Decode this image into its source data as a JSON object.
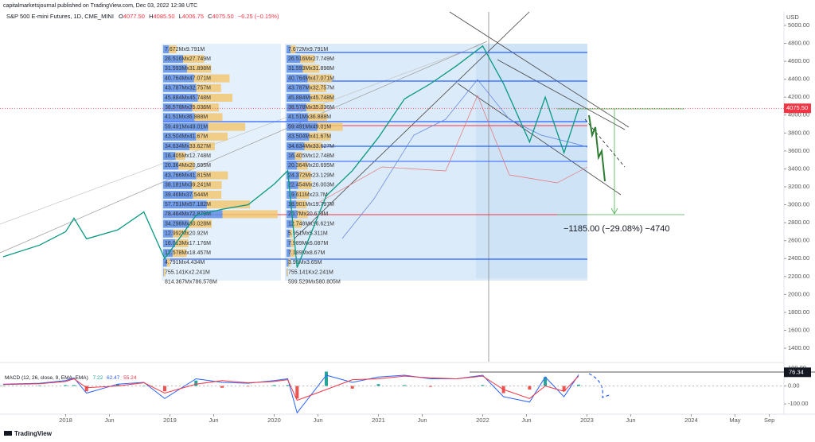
{
  "header": {
    "attribution": "capitalmarketsjournal published on TradingView.com, Dec 03, 2022 12:38 UTC",
    "symbol": "S&P 500 E-mini Futures, 1D, CME_MINI",
    "ohlc": [
      {
        "key": "O",
        "value": "4077.50"
      },
      {
        "key": "H",
        "value": "4085.50"
      },
      {
        "key": "L",
        "value": "4006.75"
      },
      {
        "key": "C",
        "value": "4075.50"
      }
    ],
    "change": "−6.25 (−0.15%)",
    "currency": "USD"
  },
  "footer": {
    "brand": "TradingView"
  },
  "volume_profiles": [
    {
      "rows": [
        {
          "label": "7.672Mx9.791M",
          "up": 7.672,
          "down": 9.791
        },
        {
          "label": "26.516Mx27.749M",
          "up": 26.516,
          "down": 27.749
        },
        {
          "label": "31.593Mx31.898M",
          "up": 31.593,
          "down": 31.898
        },
        {
          "label": "40.764Mx47.071M",
          "up": 40.764,
          "down": 47.071
        },
        {
          "label": "43.787Mx32.757M",
          "up": 43.787,
          "down": 32.757
        },
        {
          "label": "45.884Mx45.748M",
          "up": 45.884,
          "down": 45.748
        },
        {
          "label": "38.578Mx35.036M",
          "up": 38.578,
          "down": 35.036
        },
        {
          "label": "41.51Mx36.888M",
          "up": 41.51,
          "down": 36.888
        },
        {
          "label": "59.491Mx49.01M",
          "up": 59.491,
          "down": 49.01
        },
        {
          "label": "43.504Mx41.67M",
          "up": 43.504,
          "down": 41.67
        },
        {
          "label": "34.634Mx33.627M",
          "up": 34.634,
          "down": 33.627
        },
        {
          "label": "16.405Mx12.748M",
          "up": 16.405,
          "down": 12.748
        },
        {
          "label": "20.364Mx20.695M",
          "up": 20.364,
          "down": 20.695
        },
        {
          "label": "43.766Mx41.815M",
          "up": 43.766,
          "down": 41.815
        },
        {
          "label": "38.181Mx39.241M",
          "up": 38.181,
          "down": 39.241
        },
        {
          "label": "39.46Mx37.544M",
          "up": 39.46,
          "down": 37.544
        },
        {
          "label": "57.751Mx57.182M",
          "up": 57.751,
          "down": 57.182
        },
        {
          "label": "78.464Mx72.879M",
          "up": 78.464,
          "down": 72.879
        },
        {
          "label": "34.296Mx30.028M",
          "up": 34.296,
          "down": 30.028
        },
        {
          "label": "12.992Mx20.92M",
          "up": 12.992,
          "down": 20.92
        },
        {
          "label": "16.013Mx17.176M",
          "up": 16.013,
          "down": 17.176
        },
        {
          "label": "12.578Mx18.457M",
          "up": 12.578,
          "down": 18.457
        },
        {
          "label": "4.791Mx4.434M",
          "up": 4.791,
          "down": 4.434
        },
        {
          "label": "755.141Kx2.241M",
          "up": 0.755141,
          "down": 2.241
        }
      ],
      "total": "814.367Mx786.578M"
    },
    {
      "rows": [
        {
          "label": "7.672Mx9.791M",
          "up": 7.672,
          "down": 9.791
        },
        {
          "label": "26.516Mx27.749M",
          "up": 26.516,
          "down": 27.749
        },
        {
          "label": "31.593Mx31.898M",
          "up": 31.593,
          "down": 31.898
        },
        {
          "label": "40.764Mx47.071M",
          "up": 40.764,
          "down": 47.071
        },
        {
          "label": "43.787Mx32.757M",
          "up": 43.787,
          "down": 32.757
        },
        {
          "label": "45.884Mx45.748M",
          "up": 45.884,
          "down": 45.748
        },
        {
          "label": "38.578Mx35.036M",
          "up": 38.578,
          "down": 35.036
        },
        {
          "label": "41.51Mx36.888M",
          "up": 41.51,
          "down": 36.888
        },
        {
          "label": "59.491Mx49.01M",
          "up": 59.491,
          "down": 49.01
        },
        {
          "label": "43.504Mx41.67M",
          "up": 43.504,
          "down": 41.67
        },
        {
          "label": "34.634Mx33.627M",
          "up": 34.634,
          "down": 33.627
        },
        {
          "label": "16.405Mx12.748M",
          "up": 16.405,
          "down": 12.748
        },
        {
          "label": "20.364Mx20.695M",
          "up": 20.364,
          "down": 20.695
        },
        {
          "label": "24.372Mx23.129M",
          "up": 24.372,
          "down": 23.129
        },
        {
          "label": "22.454Mx26.003M",
          "up": 22.454,
          "down": 26.003
        },
        {
          "label": "19.611Mx23.7M",
          "up": 19.611,
          "down": 23.7
        },
        {
          "label": "18.901Mx19.797M",
          "up": 18.901,
          "down": 19.797
        },
        {
          "label": "20.7Mx20.673M",
          "up": 20.7,
          "down": 20.673
        },
        {
          "label": "12.748Mx16.621M",
          "up": 12.748,
          "down": 16.621
        },
        {
          "label": "5.951Mx5.311M",
          "up": 5.951,
          "down": 5.311
        },
        {
          "label": "7.989Mx6.087M",
          "up": 7.989,
          "down": 6.087
        },
        {
          "label": "7.189Mx8.67M",
          "up": 7.189,
          "down": 8.67
        },
        {
          "label": "3.93Mx3.65M",
          "up": 3.93,
          "down": 3.65
        },
        {
          "label": "755.141Kx2.241M",
          "up": 0.755141,
          "down": 2.241
        }
      ],
      "total": "599.529Mx580.805M"
    }
  ],
  "chart_data": [
    {
      "type": "line",
      "x": [
        2017.4,
        2017.75,
        2018.0,
        2018.08,
        2018.2,
        2018.5,
        2018.75,
        2018.95,
        2019.25,
        2019.5,
        2019.75,
        2020.0,
        2020.13,
        2020.22,
        2020.5,
        2020.75,
        2021.0,
        2021.25,
        2021.5,
        2021.75,
        2022.0,
        2022.2,
        2022.45,
        2022.6,
        2022.78,
        2022.92
      ],
      "series": [
        {
          "color": "#089981",
          "values": [
            2420,
            2550,
            2700,
            2850,
            2620,
            2720,
            2920,
            2400,
            2880,
            2950,
            3000,
            3230,
            3380,
            2300,
            3100,
            3380,
            3750,
            4180,
            4350,
            4550,
            4770,
            4350,
            3700,
            4200,
            3580,
            4075.5
          ]
        }
      ],
      "xlim": [
        2017.37,
        2024.89
      ],
      "xticks": [
        2018,
        {
          "value": 2018.42,
          "label": "Jun"
        },
        2019,
        {
          "value": 2019.42,
          "label": "Jun"
        },
        2020,
        {
          "value": 2020.42,
          "label": "Jun"
        },
        2021,
        {
          "value": 2021.42,
          "label": "Jun"
        },
        2022,
        {
          "value": 2022.42,
          "label": "Jun"
        },
        2023,
        {
          "value": 2023.42,
          "label": "Jun"
        },
        2024,
        {
          "value": 2024.42,
          "label": "May"
        },
        {
          "value": 2024.75,
          "label": "Sep"
        }
      ],
      "ylim": [
        1250,
        5150
      ],
      "yticks": [
        {
          "value": 1400,
          "label": "1400.00"
        },
        {
          "value": 1600,
          "label": "1600.00"
        },
        {
          "value": 1800,
          "label": "1800.00"
        },
        {
          "value": 2000,
          "label": "2000.00"
        },
        {
          "value": 2200,
          "label": "2200.00"
        },
        {
          "value": 2400,
          "label": "2400.00"
        },
        {
          "value": 2600,
          "label": "2600.00"
        },
        {
          "value": 2800,
          "label": "2800.00"
        },
        {
          "value": 3000,
          "label": "3000.00"
        },
        {
          "value": 3200,
          "label": "3200.00"
        },
        {
          "value": 3400,
          "label": "3400.00"
        },
        {
          "value": 3600,
          "label": "3600.00"
        },
        {
          "value": 3800,
          "label": "3800.00"
        },
        {
          "value": 4000,
          "label": "4000.00"
        },
        {
          "value": 4200,
          "label": "4200.00"
        },
        {
          "value": 4400,
          "label": "4400.00"
        },
        {
          "value": 4600,
          "label": "4600.00"
        },
        {
          "value": 4800,
          "label": "4800.00"
        },
        {
          "value": 5000,
          "label": "5000.00"
        }
      ],
      "last_price": {
        "value": 4075.5,
        "label": "4075.50",
        "color": "#f23645"
      },
      "annotation": "−1185.00 (−29.08%) −4740",
      "grid": false
    },
    {
      "type": "macd",
      "title": "MACD (12, 26, close, 9, EMA, EMA)",
      "x": [
        2017.4,
        2017.75,
        2018.0,
        2018.08,
        2018.2,
        2018.5,
        2018.75,
        2018.95,
        2019.25,
        2019.5,
        2019.75,
        2020.0,
        2020.13,
        2020.22,
        2020.5,
        2020.75,
        2021.0,
        2021.25,
        2021.5,
        2021.75,
        2022.0,
        2022.2,
        2022.45,
        2022.6,
        2022.78,
        2022.92
      ],
      "series": [
        {
          "color": "#26a69a",
          "kind": "histogram",
          "values": [
            2,
            3,
            5,
            5,
            -30,
            10,
            2,
            -30,
            30,
            -10,
            -3,
            5,
            5,
            -70,
            80,
            -15,
            10,
            5,
            -5,
            0,
            5,
            -40,
            -20,
            50,
            -30,
            7.22
          ]
        },
        {
          "color": "#2962ff",
          "kind": "line",
          "values": [
            10,
            15,
            30,
            45,
            -40,
            10,
            20,
            -70,
            40,
            20,
            15,
            30,
            40,
            -150,
            60,
            20,
            50,
            60,
            40,
            40,
            60,
            -60,
            -90,
            50,
            -60,
            62.47
          ]
        },
        {
          "color": "#f23645",
          "kind": "line",
          "values": [
            8,
            12,
            25,
            40,
            -10,
            0,
            18,
            -40,
            10,
            30,
            18,
            25,
            35,
            -80,
            -20,
            35,
            40,
            55,
            45,
            40,
            55,
            -20,
            -70,
            0,
            -30,
            55.24
          ]
        }
      ],
      "xlim": [
        2017.37,
        2024.89
      ],
      "ylim": [
        -153,
        122
      ],
      "yticks": [
        {
          "value": -100,
          "label": "-100.00"
        },
        {
          "value": 0,
          "label": "0.00"
        },
        {
          "value": 100,
          "label": "100.00"
        }
      ],
      "level_tag": {
        "value": 76.34,
        "label": "76.34"
      },
      "grid": false
    }
  ]
}
